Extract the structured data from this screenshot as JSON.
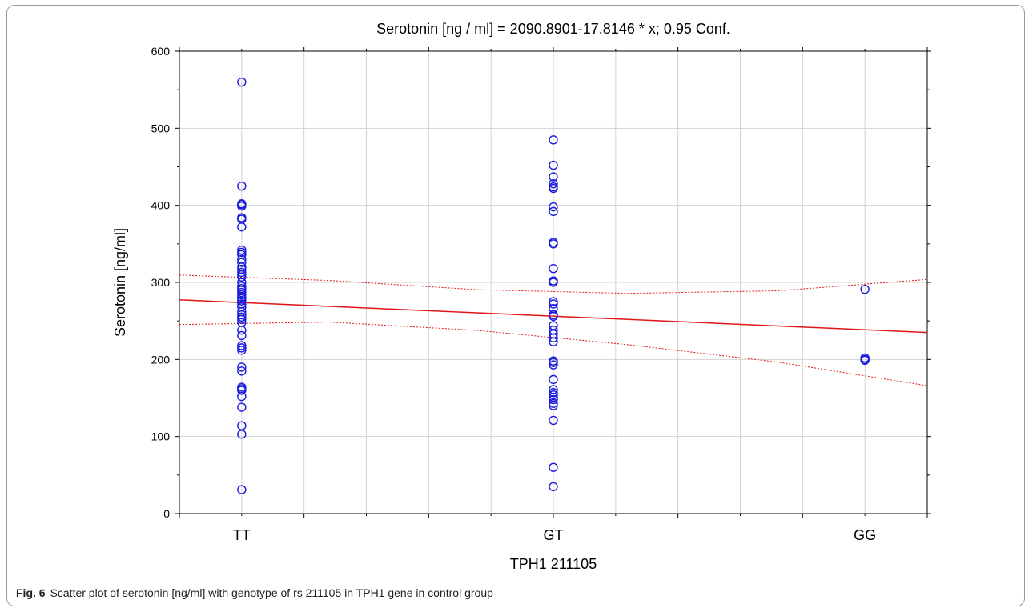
{
  "caption": {
    "label": "Fig. 6",
    "text": "Scatter plot of serotonin [ng/ml] with genotype of rs 211105 in TPH1 gene in control group"
  },
  "chart_data": {
    "type": "scatter",
    "title": "Serotonin [ng / ml] = 2090.8901-17.8146 * x; 0.95 Conf.",
    "xlabel": "TPH1 211105",
    "ylabel": "Serotonin [ng/ml]",
    "categories": [
      "TT",
      "GT",
      "GG"
    ],
    "ylim": [
      0,
      600
    ],
    "yticks": [
      0,
      100,
      200,
      300,
      400,
      500,
      600
    ],
    "grid": true,
    "colors": {
      "points": "#1a1adc",
      "fit": "#e01515",
      "grid": "#d3d3d3"
    },
    "points": {
      "TT": [
        560,
        425,
        402,
        401,
        399,
        384,
        382,
        372,
        342,
        339,
        336,
        330,
        326,
        320,
        317,
        313,
        310,
        307,
        300,
        295,
        292,
        290,
        287,
        284,
        281,
        279,
        276,
        272,
        268,
        262,
        258,
        255,
        252,
        248,
        238,
        231,
        218,
        215,
        212,
        190,
        185,
        164,
        162,
        160,
        152,
        138,
        114,
        103,
        31
      ],
      "GT": [
        485,
        452,
        437,
        428,
        424,
        422,
        398,
        392,
        352,
        350,
        318,
        302,
        300,
        275,
        272,
        266,
        258,
        256,
        244,
        238,
        233,
        228,
        223,
        198,
        196,
        193,
        174,
        161,
        157,
        154,
        151,
        148,
        143,
        140,
        121,
        60,
        35
      ],
      "GG": [
        291,
        202,
        200,
        199
      ]
    },
    "fit": {
      "x_range": [
        0.8,
        3.2
      ],
      "mean_line": [
        277.4,
        235.0
      ],
      "conf_upper": [
        309.6,
        302.5,
        290.5,
        285.8,
        289.1,
        303.8
      ],
      "conf_lower": [
        245.3,
        248.5,
        237.6,
        219.1,
        196.6,
        166.0
      ]
    }
  }
}
